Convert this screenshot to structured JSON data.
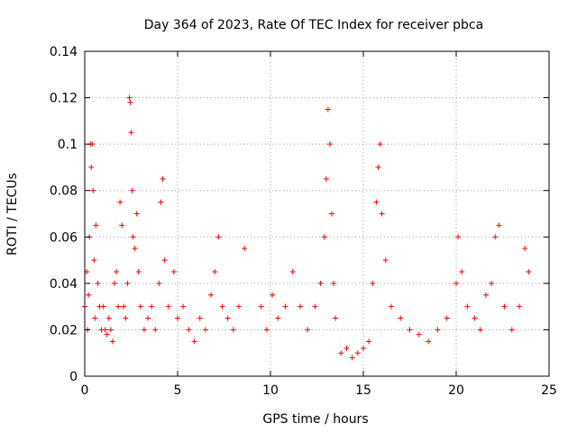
{
  "chart_data": {
    "type": "scatter",
    "title": "Day 364 of 2023, Rate Of TEC Index for receiver pbca",
    "xlabel": "GPS time / hours",
    "ylabel": "ROTI / TECUs",
    "xlim": [
      0,
      25
    ],
    "ylim": [
      0,
      0.14
    ],
    "xticks": [
      0,
      5,
      10,
      15,
      20,
      25
    ],
    "xtick_labels": [
      "0",
      "5",
      "10",
      "15",
      "20",
      "25"
    ],
    "yticks": [
      0,
      0.02,
      0.04,
      0.06,
      0.08,
      0.1,
      0.12,
      0.14
    ],
    "ytick_labels": [
      "0",
      "0.02",
      "0.04",
      "0.06",
      "0.08",
      "0.1",
      "0.12",
      "0.14"
    ],
    "grid": true,
    "marker": "plus",
    "color": "#ff0000",
    "series": [
      {
        "name": "ROTI",
        "points": [
          [
            0.0,
            0.03
          ],
          [
            0.1,
            0.045
          ],
          [
            0.15,
            0.02
          ],
          [
            0.2,
            0.035
          ],
          [
            0.25,
            0.06
          ],
          [
            0.3,
            0.1
          ],
          [
            0.35,
            0.09
          ],
          [
            0.4,
            0.1
          ],
          [
            0.45,
            0.08
          ],
          [
            0.5,
            0.05
          ],
          [
            0.55,
            0.025
          ],
          [
            0.6,
            0.065
          ],
          [
            0.7,
            0.04
          ],
          [
            0.8,
            0.03
          ],
          [
            0.9,
            0.02
          ],
          [
            1.0,
            0.03
          ],
          [
            1.1,
            0.02
          ],
          [
            1.2,
            0.018
          ],
          [
            1.3,
            0.025
          ],
          [
            1.4,
            0.02
          ],
          [
            1.5,
            0.015
          ],
          [
            1.6,
            0.04
          ],
          [
            1.7,
            0.045
          ],
          [
            1.8,
            0.03
          ],
          [
            1.9,
            0.075
          ],
          [
            2.0,
            0.065
          ],
          [
            2.1,
            0.03
          ],
          [
            2.2,
            0.025
          ],
          [
            2.3,
            0.04
          ],
          [
            2.4,
            0.12
          ],
          [
            2.45,
            0.118
          ],
          [
            2.5,
            0.105
          ],
          [
            2.55,
            0.08
          ],
          [
            2.6,
            0.06
          ],
          [
            2.7,
            0.055
          ],
          [
            2.8,
            0.07
          ],
          [
            2.9,
            0.045
          ],
          [
            3.0,
            0.03
          ],
          [
            3.2,
            0.02
          ],
          [
            3.4,
            0.025
          ],
          [
            3.6,
            0.03
          ],
          [
            3.8,
            0.02
          ],
          [
            4.0,
            0.04
          ],
          [
            4.1,
            0.075
          ],
          [
            4.2,
            0.085
          ],
          [
            4.3,
            0.05
          ],
          [
            4.5,
            0.03
          ],
          [
            4.8,
            0.045
          ],
          [
            5.0,
            0.025
          ],
          [
            5.3,
            0.03
          ],
          [
            5.6,
            0.02
          ],
          [
            5.9,
            0.015
          ],
          [
            6.2,
            0.025
          ],
          [
            6.5,
            0.02
          ],
          [
            6.8,
            0.035
          ],
          [
            7.0,
            0.045
          ],
          [
            7.2,
            0.06
          ],
          [
            7.4,
            0.03
          ],
          [
            7.7,
            0.025
          ],
          [
            8.0,
            0.02
          ],
          [
            8.3,
            0.03
          ],
          [
            8.6,
            0.055
          ],
          [
            9.5,
            0.03
          ],
          [
            9.8,
            0.02
          ],
          [
            10.1,
            0.035
          ],
          [
            10.4,
            0.025
          ],
          [
            10.8,
            0.03
          ],
          [
            11.2,
            0.045
          ],
          [
            11.6,
            0.03
          ],
          [
            12.0,
            0.02
          ],
          [
            12.4,
            0.03
          ],
          [
            12.7,
            0.04
          ],
          [
            12.9,
            0.06
          ],
          [
            13.0,
            0.085
          ],
          [
            13.1,
            0.115
          ],
          [
            13.2,
            0.1
          ],
          [
            13.3,
            0.07
          ],
          [
            13.4,
            0.04
          ],
          [
            13.5,
            0.025
          ],
          [
            13.8,
            0.01
          ],
          [
            14.1,
            0.012
          ],
          [
            14.4,
            0.008
          ],
          [
            14.7,
            0.01
          ],
          [
            15.0,
            0.012
          ],
          [
            15.3,
            0.015
          ],
          [
            15.5,
            0.04
          ],
          [
            15.7,
            0.075
          ],
          [
            15.8,
            0.09
          ],
          [
            15.9,
            0.1
          ],
          [
            16.0,
            0.07
          ],
          [
            16.2,
            0.05
          ],
          [
            16.5,
            0.03
          ],
          [
            17.0,
            0.025
          ],
          [
            17.5,
            0.02
          ],
          [
            18.0,
            0.018
          ],
          [
            18.5,
            0.015
          ],
          [
            19.0,
            0.02
          ],
          [
            19.5,
            0.025
          ],
          [
            20.0,
            0.04
          ],
          [
            20.1,
            0.06
          ],
          [
            20.3,
            0.045
          ],
          [
            20.6,
            0.03
          ],
          [
            21.0,
            0.025
          ],
          [
            21.3,
            0.02
          ],
          [
            21.6,
            0.035
          ],
          [
            21.9,
            0.04
          ],
          [
            22.1,
            0.06
          ],
          [
            22.3,
            0.065
          ],
          [
            22.6,
            0.03
          ],
          [
            23.0,
            0.02
          ],
          [
            23.4,
            0.03
          ],
          [
            23.7,
            0.055
          ],
          [
            23.9,
            0.045
          ]
        ]
      }
    ]
  }
}
